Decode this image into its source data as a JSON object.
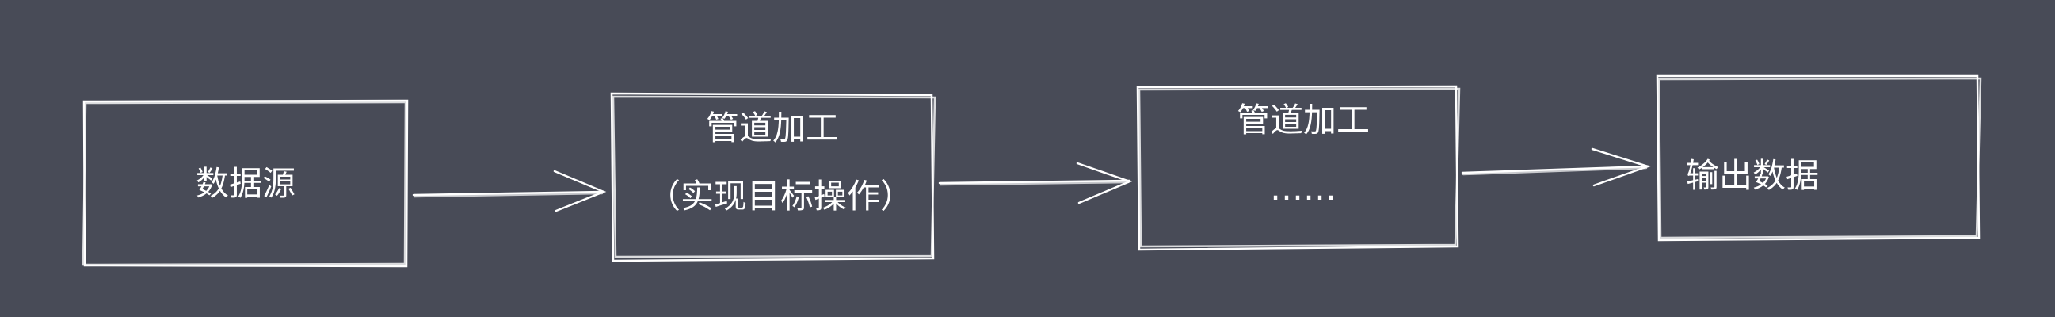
{
  "nodes": [
    {
      "id": "source",
      "lines": [
        "数据源"
      ]
    },
    {
      "id": "stage1",
      "lines": [
        "管道加工",
        "（实现目标操作）"
      ]
    },
    {
      "id": "stage2",
      "lines": [
        "管道加工",
        "……"
      ]
    },
    {
      "id": "output",
      "lines": [
        "输出数据"
      ]
    }
  ],
  "edges": [
    {
      "from": "source",
      "to": "stage1"
    },
    {
      "from": "stage1",
      "to": "stage2"
    },
    {
      "from": "stage2",
      "to": "output"
    }
  ],
  "colors": {
    "background": "#484b57",
    "stroke": "#ffffff",
    "text": "#ffffff"
  }
}
